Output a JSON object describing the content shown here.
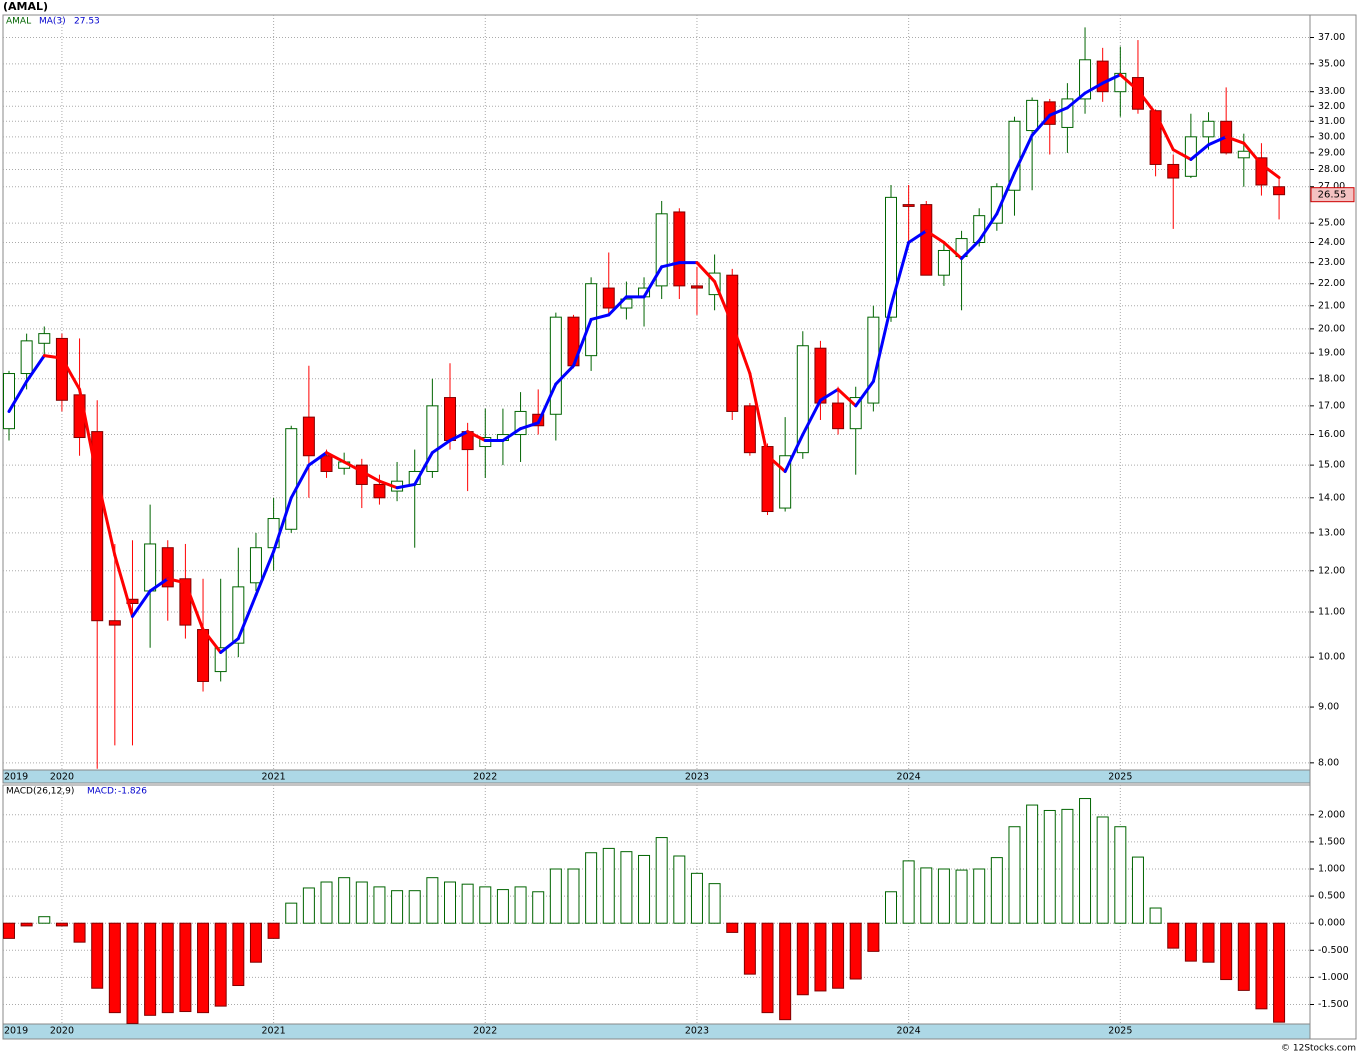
{
  "chart_data": [
    {
      "type": "candlestick",
      "title": "(AMAL)",
      "name": "AMAL",
      "log_scale": true,
      "grid": true,
      "up_color": "#006400",
      "down_color": "#ff0000",
      "categories": [
        "2019",
        null,
        null,
        "2020",
        null,
        null,
        null,
        null,
        null,
        null,
        null,
        null,
        null,
        null,
        null,
        "2021",
        null,
        null,
        null,
        null,
        null,
        null,
        null,
        null,
        null,
        null,
        null,
        "2022",
        null,
        null,
        null,
        null,
        null,
        null,
        null,
        null,
        null,
        null,
        null,
        "2023",
        null,
        null,
        null,
        null,
        null,
        null,
        null,
        null,
        null,
        null,
        null,
        "2024",
        null,
        null,
        null,
        null,
        null,
        null,
        null,
        null,
        null,
        null,
        null,
        "2025",
        null,
        null,
        null,
        null,
        null,
        null,
        null,
        null,
        null
      ],
      "open": [
        16.2,
        18.2,
        19.4,
        19.6,
        17.4,
        16.1,
        10.8,
        11.3,
        11.5,
        12.6,
        11.8,
        10.6,
        9.7,
        10.3,
        11.7,
        12.6,
        13.1,
        16.6,
        15.3,
        14.9,
        15.0,
        14.4,
        14.2,
        14.4,
        14.8,
        17.3,
        16.1,
        15.6,
        15.8,
        16.0,
        16.7,
        16.7,
        20.5,
        18.9,
        21.8,
        20.9,
        21.4,
        21.9,
        25.6,
        21.9,
        21.5,
        22.4,
        17.0,
        15.6,
        13.7,
        15.4,
        19.2,
        17.1,
        16.2,
        17.1,
        20.5,
        26.0,
        26.0,
        22.4,
        23.3,
        24.0,
        25.0,
        26.8,
        30.4,
        32.3,
        30.6,
        32.5,
        35.2,
        33.0,
        34.0,
        31.7,
        28.3,
        27.6,
        30.0,
        31.0,
        28.7,
        28.7,
        27.0
      ],
      "high": [
        18.3,
        19.8,
        20.1,
        19.8,
        19.6,
        17.2,
        12.7,
        12.8,
        13.8,
        12.8,
        12.7,
        11.8,
        11.8,
        12.6,
        13.0,
        14.0,
        16.3,
        18.5,
        15.5,
        15.4,
        15.2,
        14.7,
        15.1,
        15.5,
        18.0,
        18.6,
        16.4,
        16.9,
        16.9,
        17.5,
        17.6,
        20.7,
        20.6,
        22.3,
        23.5,
        22.1,
        22.3,
        26.2,
        25.8,
        22.8,
        23.4,
        22.7,
        17.1,
        15.7,
        16.6,
        19.9,
        19.5,
        17.7,
        17.7,
        21.0,
        27.1,
        27.1,
        26.2,
        24.0,
        24.6,
        25.8,
        27.2,
        31.3,
        32.6,
        32.5,
        33.6,
        37.8,
        36.2,
        36.3,
        36.8,
        31.8,
        28.9,
        31.5,
        31.6,
        33.3,
        30.2,
        29.6,
        27.6
      ],
      "low": [
        15.8,
        17.6,
        18.9,
        16.8,
        15.3,
        7.9,
        8.3,
        8.3,
        10.2,
        10.8,
        10.4,
        9.3,
        9.5,
        10.0,
        11.5,
        12.0,
        13.0,
        14.0,
        14.6,
        14.7,
        13.7,
        13.8,
        13.9,
        12.6,
        14.6,
        15.5,
        14.2,
        14.6,
        15.0,
        15.1,
        16.0,
        15.8,
        18.4,
        18.3,
        20.6,
        20.4,
        20.1,
        21.3,
        21.3,
        20.6,
        20.8,
        16.5,
        15.3,
        13.5,
        13.6,
        15.2,
        16.5,
        16.0,
        14.7,
        16.8,
        20.3,
        24.0,
        22.4,
        21.9,
        20.8,
        23.8,
        24.6,
        25.4,
        26.8,
        28.9,
        29.0,
        31.5,
        32.3,
        31.3,
        31.5,
        27.6,
        24.7,
        27.5,
        29.2,
        28.9,
        27.0,
        26.5,
        25.2
      ],
      "close": [
        18.2,
        19.5,
        19.8,
        17.2,
        15.9,
        10.8,
        10.7,
        11.2,
        12.7,
        11.6,
        10.7,
        9.5,
        10.2,
        11.6,
        12.6,
        13.4,
        16.2,
        15.3,
        14.8,
        15.1,
        14.4,
        14.0,
        14.5,
        14.8,
        17.0,
        15.8,
        15.5,
        15.9,
        16.0,
        16.8,
        16.3,
        20.5,
        18.5,
        22.0,
        20.9,
        21.3,
        21.8,
        25.5,
        21.9,
        21.8,
        22.5,
        16.8,
        15.4,
        13.6,
        15.3,
        19.3,
        17.1,
        16.2,
        17.3,
        20.5,
        26.4,
        25.9,
        22.4,
        23.6,
        24.2,
        25.4,
        27.0,
        31.0,
        32.4,
        30.8,
        32.5,
        35.3,
        33.0,
        34.3,
        31.8,
        28.3,
        27.5,
        30.0,
        31.0,
        29.0,
        29.1,
        27.1,
        26.55
      ],
      "ma": {
        "name": "MA(3)",
        "up_color": "#0000ff",
        "down_color": "#ff0000",
        "values": [
          16.8,
          17.9,
          18.9,
          18.8,
          17.6,
          14.6,
          12.4,
          10.9,
          11.5,
          11.8,
          11.7,
          10.6,
          10.1,
          10.4,
          11.4,
          12.5,
          14.0,
          15.0,
          15.4,
          15.1,
          14.8,
          14.5,
          14.3,
          14.4,
          15.4,
          15.8,
          16.1,
          15.8,
          15.8,
          16.2,
          16.4,
          17.8,
          18.5,
          20.4,
          20.6,
          21.4,
          21.4,
          22.8,
          23.0,
          23.0,
          22.1,
          20.2,
          18.2,
          15.3,
          14.8,
          16.0,
          17.2,
          17.6,
          17.0,
          17.9,
          21.0,
          24.0,
          24.6,
          24.0,
          23.2,
          24.1,
          25.5,
          27.8,
          30.1,
          31.4,
          31.9,
          32.9,
          33.6,
          34.2,
          33.1,
          31.5,
          29.2,
          28.6,
          29.5,
          30.0,
          29.6,
          28.3,
          27.53
        ]
      },
      "ylim": [
        7.88,
        38.8
      ],
      "yticks": [
        {
          "value": 8,
          "label": "8.00"
        },
        {
          "value": 9,
          "label": "9.00"
        },
        {
          "value": 10,
          "label": "10.00"
        },
        {
          "value": 11,
          "label": "11.00"
        },
        {
          "value": 12,
          "label": "12.00"
        },
        {
          "value": 13,
          "label": "13.00"
        },
        {
          "value": 14,
          "label": "14.00"
        },
        {
          "value": 15,
          "label": "15.00"
        },
        {
          "value": 16,
          "label": "16.00"
        },
        {
          "value": 17,
          "label": "17.00"
        },
        {
          "value": 18,
          "label": "18.00"
        },
        {
          "value": 19,
          "label": "19.00"
        },
        {
          "value": 20,
          "label": "20.00"
        },
        {
          "value": 21,
          "label": "21.00"
        },
        {
          "value": 22,
          "label": "22.00"
        },
        {
          "value": 23,
          "label": "23.00"
        },
        {
          "value": 24,
          "label": "24.00"
        },
        {
          "value": 25,
          "label": "25.00"
        },
        {
          "value": 27,
          "label": "27.00"
        },
        {
          "value": 28,
          "label": "28.00"
        },
        {
          "value": 29,
          "label": "29.00"
        },
        {
          "value": 30,
          "label": "30.00"
        },
        {
          "value": 31,
          "label": "31.00"
        },
        {
          "value": 32,
          "label": "32.00"
        },
        {
          "value": 33,
          "label": "33.00"
        },
        {
          "value": 35,
          "label": "35.00"
        },
        {
          "value": 37,
          "label": "37.00"
        }
      ]
    },
    {
      "type": "bar",
      "title": "MACD(26,12,9)",
      "value_name": "MACD:",
      "up_color": "#006400",
      "down_color": "#ff0000",
      "grid": true,
      "values": [
        -0.28,
        -0.05,
        0.12,
        -0.05,
        -0.35,
        -1.2,
        -1.65,
        -1.85,
        -1.7,
        -1.65,
        -1.63,
        -1.65,
        -1.53,
        -1.15,
        -0.72,
        -0.28,
        0.37,
        0.65,
        0.76,
        0.84,
        0.76,
        0.67,
        0.6,
        0.6,
        0.84,
        0.76,
        0.72,
        0.67,
        0.62,
        0.67,
        0.58,
        1.0,
        1.0,
        1.3,
        1.38,
        1.32,
        1.25,
        1.58,
        1.24,
        0.92,
        0.73,
        -0.17,
        -0.94,
        -1.65,
        -1.78,
        -1.32,
        -1.25,
        -1.2,
        -1.03,
        -0.52,
        0.58,
        1.15,
        1.02,
        1.0,
        0.98,
        1.0,
        1.21,
        1.78,
        2.18,
        2.08,
        2.1,
        2.3,
        1.96,
        1.78,
        1.22,
        0.28,
        -0.46,
        -0.7,
        -0.72,
        -1.04,
        -1.24,
        -1.58,
        -1.826
      ],
      "ylim": [
        -1.86,
        2.55
      ],
      "yticks": [
        {
          "value": -1.5,
          "label": "-1.500"
        },
        {
          "value": -1,
          "label": "-1.000"
        },
        {
          "value": -0.5,
          "label": "-0.500"
        },
        {
          "value": 0,
          "label": "0.000"
        },
        {
          "value": 0.5,
          "label": "0.500"
        },
        {
          "value": 1,
          "label": "1.000"
        },
        {
          "value": 1.5,
          "label": "1.500"
        },
        {
          "value": 2,
          "label": "2.000"
        }
      ]
    }
  ],
  "footer": "© 12Stocks.com"
}
